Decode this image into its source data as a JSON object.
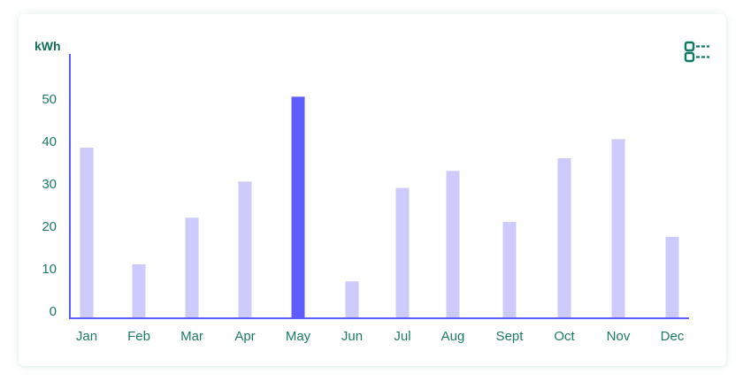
{
  "colors": {
    "bar": "#cccbfb",
    "bar_highlight": "#5f5cff",
    "axis": "#5f5cff",
    "text": "#1c7a66",
    "icon": "#0f7a62"
  },
  "legend_toggle": {
    "icon": "list-legend-icon"
  },
  "chart_data": {
    "type": "bar",
    "ylabel": "kWh",
    "ylim": [
      0,
      60
    ],
    "yticks": [
      0,
      10,
      20,
      30,
      40,
      50
    ],
    "grid": false,
    "categories": [
      "Jan",
      "Feb",
      "Mar",
      "Apr",
      "May",
      "Jun",
      "Jul",
      "Aug",
      "Sept",
      "Oct",
      "Nov",
      "Dec"
    ],
    "values": [
      40,
      12.5,
      23.5,
      32,
      52,
      8.5,
      30.5,
      34.5,
      22.5,
      37.5,
      42,
      19
    ],
    "highlight_category": "May"
  }
}
